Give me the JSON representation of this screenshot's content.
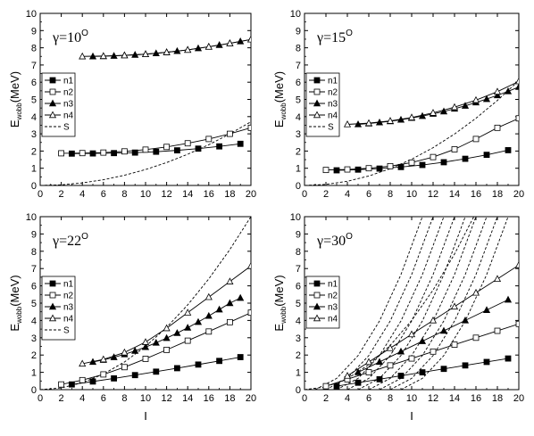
{
  "chart_data": [
    {
      "type": "line",
      "gamma_label": "γ=10",
      "gamma_sup": "O",
      "ylabel_main": "E",
      "ylabel_sub": "wobb",
      "ylabel_unit": "(MeV)",
      "xlabel": "",
      "xlim": [
        0,
        20
      ],
      "ylim": [
        0,
        10
      ],
      "xticks": [
        "0",
        "2",
        "4",
        "6",
        "8",
        "10",
        "12",
        "14",
        "16",
        "18",
        "20"
      ],
      "yticks": [
        "0",
        "1",
        "2",
        "3",
        "4",
        "5",
        "6",
        "7",
        "8",
        "9",
        "10"
      ],
      "legend": [
        "n1",
        "n2",
        "n3",
        "n4",
        "S"
      ],
      "series": [
        {
          "name": "n1",
          "marker": "square-filled",
          "x": [
            3,
            5,
            7,
            9,
            11,
            13,
            15,
            17,
            19
          ],
          "y": [
            1.85,
            1.86,
            1.88,
            1.91,
            1.96,
            2.04,
            2.14,
            2.27,
            2.42
          ]
        },
        {
          "name": "n2",
          "marker": "square-open",
          "x": [
            2,
            4,
            6,
            8,
            10,
            12,
            14,
            16,
            18,
            20
          ],
          "y": [
            1.87,
            1.88,
            1.91,
            1.98,
            2.08,
            2.24,
            2.45,
            2.7,
            3.0,
            3.35
          ]
        },
        {
          "name": "n3",
          "marker": "triangle-filled",
          "x": [
            5,
            6,
            7,
            8,
            9,
            10,
            11,
            12,
            13,
            14,
            15,
            16,
            17,
            18,
            19,
            20
          ],
          "y": [
            7.5,
            7.51,
            7.53,
            7.56,
            7.59,
            7.63,
            7.68,
            7.74,
            7.81,
            7.88,
            7.97,
            8.06,
            8.16,
            8.26,
            8.37,
            8.48
          ]
        },
        {
          "name": "n4",
          "marker": "triangle-open",
          "x": [
            4,
            6,
            8,
            10,
            12,
            14,
            16,
            18,
            20
          ],
          "y": [
            7.5,
            7.52,
            7.56,
            7.63,
            7.74,
            7.88,
            8.06,
            8.26,
            8.48
          ]
        }
      ],
      "curves": [
        {
          "name": "S",
          "style": "dashed",
          "x": [
            0,
            2,
            4,
            6,
            8,
            10,
            12,
            14,
            16,
            18,
            20
          ],
          "y": [
            0,
            0.037,
            0.148,
            0.333,
            0.592,
            0.925,
            1.332,
            1.813,
            2.368,
            2.997,
            3.7
          ]
        }
      ]
    },
    {
      "type": "line",
      "gamma_label": "γ=15",
      "gamma_sup": "O",
      "ylabel_main": "E",
      "ylabel_sub": "wobb",
      "ylabel_unit": "(MeV)",
      "xlabel": "",
      "xlim": [
        0,
        20
      ],
      "ylim": [
        0,
        10
      ],
      "xticks": [
        "0",
        "2",
        "4",
        "6",
        "8",
        "10",
        "12",
        "14",
        "16",
        "18",
        "20"
      ],
      "yticks": [
        "0",
        "1",
        "2",
        "3",
        "4",
        "5",
        "6",
        "7",
        "8",
        "9",
        "10"
      ],
      "legend": [
        "n1",
        "n2",
        "n3",
        "n4",
        "S"
      ],
      "series": [
        {
          "name": "n1",
          "marker": "square-filled",
          "x": [
            3,
            5,
            7,
            9,
            11,
            13,
            15,
            17,
            19
          ],
          "y": [
            0.88,
            0.92,
            0.98,
            1.07,
            1.19,
            1.35,
            1.55,
            1.78,
            2.05
          ]
        },
        {
          "name": "n2",
          "marker": "square-open",
          "x": [
            2,
            4,
            6,
            8,
            10,
            12,
            14,
            16,
            18,
            20
          ],
          "y": [
            0.9,
            0.93,
            1.0,
            1.12,
            1.33,
            1.65,
            2.1,
            2.7,
            3.35,
            3.9
          ]
        },
        {
          "name": "n3",
          "marker": "triangle-filled",
          "x": [
            5,
            6,
            7,
            8,
            9,
            10,
            11,
            12,
            13,
            14,
            15,
            16,
            17,
            18,
            19,
            20
          ],
          "y": [
            3.55,
            3.6,
            3.66,
            3.73,
            3.82,
            3.92,
            4.03,
            4.16,
            4.3,
            4.46,
            4.63,
            4.82,
            5.02,
            5.24,
            5.47,
            5.72
          ]
        },
        {
          "name": "n4",
          "marker": "triangle-open",
          "x": [
            4,
            6,
            8,
            10,
            12,
            14,
            16,
            18,
            20
          ],
          "y": [
            3.55,
            3.62,
            3.75,
            3.95,
            4.22,
            4.55,
            4.96,
            5.45,
            6.05
          ]
        }
      ],
      "curves": [
        {
          "name": "S",
          "style": "dashed",
          "x": [
            0,
            2,
            4,
            6,
            8,
            10,
            12,
            14,
            16,
            18,
            20
          ],
          "y": [
            0,
            0.061,
            0.244,
            0.549,
            0.976,
            1.525,
            2.196,
            2.989,
            3.904,
            4.941,
            6.1
          ]
        }
      ]
    },
    {
      "type": "line",
      "gamma_label": "γ=22",
      "gamma_sup": "O",
      "ylabel_main": "E",
      "ylabel_sub": "wobb",
      "ylabel_unit": "(MeV)",
      "xlabel": "I",
      "xlim": [
        0,
        20
      ],
      "ylim": [
        0,
        10
      ],
      "xticks": [
        "0",
        "2",
        "4",
        "6",
        "8",
        "10",
        "12",
        "14",
        "16",
        "18",
        "20"
      ],
      "yticks": [
        "0",
        "1",
        "2",
        "3",
        "4",
        "5",
        "6",
        "7",
        "8",
        "9",
        "10"
      ],
      "legend": [
        "n1",
        "n2",
        "n3",
        "n4",
        "S"
      ],
      "series": [
        {
          "name": "n1",
          "marker": "square-filled",
          "x": [
            3,
            5,
            7,
            9,
            11,
            13,
            15,
            17,
            19
          ],
          "y": [
            0.3,
            0.47,
            0.65,
            0.84,
            1.04,
            1.24,
            1.45,
            1.66,
            1.88
          ]
        },
        {
          "name": "n2",
          "marker": "square-open",
          "x": [
            2,
            4,
            6,
            8,
            10,
            12,
            14,
            16,
            18,
            20
          ],
          "y": [
            0.3,
            0.55,
            0.88,
            1.3,
            1.78,
            2.3,
            2.83,
            3.36,
            3.9,
            4.45
          ]
        },
        {
          "name": "n3",
          "marker": "triangle-filled",
          "x": [
            5,
            6,
            7,
            8,
            9,
            10,
            11,
            12,
            13,
            14,
            15,
            16,
            17,
            18,
            19
          ],
          "y": [
            1.6,
            1.72,
            1.87,
            2.04,
            2.24,
            2.46,
            2.71,
            2.98,
            3.27,
            3.58,
            3.91,
            4.26,
            4.63,
            5.0,
            5.3
          ]
        },
        {
          "name": "n4",
          "marker": "triangle-open",
          "x": [
            4,
            6,
            8,
            10,
            12,
            14,
            16,
            18,
            20
          ],
          "y": [
            1.5,
            1.75,
            2.15,
            2.75,
            3.55,
            4.45,
            5.35,
            6.25,
            7.15
          ]
        }
      ],
      "curves": [
        {
          "name": "S",
          "style": "dashed",
          "x": [
            0,
            2,
            4,
            6,
            8,
            10,
            12,
            14,
            16,
            18,
            20
          ],
          "y": [
            0,
            0.1,
            0.4,
            0.9,
            1.6,
            2.5,
            3.6,
            4.9,
            6.4,
            8.1,
            10.0
          ]
        }
      ]
    },
    {
      "type": "line",
      "gamma_label": "γ=30",
      "gamma_sup": "O",
      "ylabel_main": "E",
      "ylabel_sub": "wobb",
      "ylabel_unit": "(MeV)",
      "xlabel": "I",
      "xlim": [
        0,
        20
      ],
      "ylim": [
        0,
        10
      ],
      "xticks": [
        "0",
        "2",
        "4",
        "6",
        "8",
        "10",
        "12",
        "14",
        "16",
        "18",
        "20"
      ],
      "yticks": [
        "0",
        "1",
        "2",
        "3",
        "4",
        "5",
        "6",
        "7",
        "8",
        "9",
        "10"
      ],
      "legend": [
        "n1",
        "n2",
        "n3",
        "n4"
      ],
      "series": [
        {
          "name": "n1",
          "marker": "square-filled",
          "x": [
            3,
            5,
            7,
            9,
            11,
            13,
            15,
            17,
            19
          ],
          "y": [
            0.2,
            0.4,
            0.6,
            0.8,
            1.0,
            1.2,
            1.4,
            1.6,
            1.8
          ]
        },
        {
          "name": "n2",
          "marker": "square-open",
          "x": [
            2,
            4,
            6,
            8,
            10,
            12,
            14,
            16,
            18,
            20
          ],
          "y": [
            0.2,
            0.6,
            1.0,
            1.4,
            1.8,
            2.2,
            2.6,
            3.0,
            3.4,
            3.8
          ]
        },
        {
          "name": "n3",
          "marker": "triangle-filled",
          "x": [
            5,
            7,
            9,
            11,
            13,
            15,
            17,
            19
          ],
          "y": [
            1.0,
            1.6,
            2.2,
            2.8,
            3.4,
            4.0,
            4.6,
            5.2
          ]
        },
        {
          "name": "n4",
          "marker": "triangle-open",
          "x": [
            4,
            6,
            8,
            10,
            12,
            14,
            16,
            18,
            20
          ],
          "y": [
            0.8,
            1.6,
            2.4,
            3.2,
            4.0,
            4.8,
            5.6,
            6.4,
            7.2
          ]
        }
      ],
      "curves": [
        {
          "name": "c0",
          "style": "dashed",
          "x": [
            0,
            2,
            4,
            6,
            8,
            10,
            12,
            14,
            15.8
          ],
          "y": [
            0,
            0.16,
            0.64,
            1.44,
            2.56,
            4.0,
            5.76,
            7.84,
            10.0
          ]
        },
        {
          "name": "c1",
          "style": "dashed",
          "x": [
            1,
            3,
            5,
            7,
            9,
            11,
            12.7
          ],
          "y": [
            0,
            0.65,
            1.97,
            3.97,
            6.65,
            10.0,
            13.4
          ]
        },
        {
          "name": "c2",
          "style": "dashed",
          "x": [
            2,
            4,
            6,
            8,
            10,
            12,
            13.8
          ],
          "y": [
            0,
            0.65,
            1.97,
            3.97,
            6.65,
            10.0,
            13.4
          ]
        },
        {
          "name": "c3",
          "style": "dashed",
          "x": [
            3,
            5,
            7,
            9,
            11,
            13,
            14.9
          ],
          "y": [
            0,
            0.65,
            1.97,
            3.97,
            6.65,
            10.0,
            13.4
          ]
        },
        {
          "name": "c4",
          "style": "dashed",
          "x": [
            4,
            6,
            8,
            10,
            12,
            14,
            15.9
          ],
          "y": [
            0,
            0.65,
            1.97,
            3.97,
            6.65,
            10.0,
            13.4
          ]
        },
        {
          "name": "c5",
          "style": "dashed",
          "x": [
            5,
            7,
            9,
            11,
            13,
            15,
            16.9
          ],
          "y": [
            0,
            0.65,
            1.97,
            3.97,
            6.65,
            10.0,
            13.4
          ]
        },
        {
          "name": "c6",
          "style": "dashed",
          "x": [
            6,
            8,
            10,
            12,
            14,
            16,
            17.9
          ],
          "y": [
            0,
            0.65,
            1.97,
            3.97,
            6.65,
            10.0,
            13.4
          ]
        },
        {
          "name": "c7",
          "style": "dashed",
          "x": [
            7,
            9,
            11,
            13,
            15,
            17,
            18.9
          ],
          "y": [
            0,
            0.65,
            1.97,
            3.97,
            6.65,
            10.0,
            13.4
          ]
        },
        {
          "name": "c8",
          "style": "dashed",
          "x": [
            8,
            10,
            12,
            14,
            16,
            18,
            19.9
          ],
          "y": [
            0,
            0.65,
            1.97,
            3.97,
            6.65,
            10.0,
            13.4
          ]
        },
        {
          "name": "c9",
          "style": "dashed",
          "x": [
            9,
            11,
            13,
            15,
            17,
            19,
            20.9
          ],
          "y": [
            0,
            0.65,
            1.97,
            3.97,
            6.65,
            10.0,
            13.4
          ]
        }
      ]
    }
  ]
}
